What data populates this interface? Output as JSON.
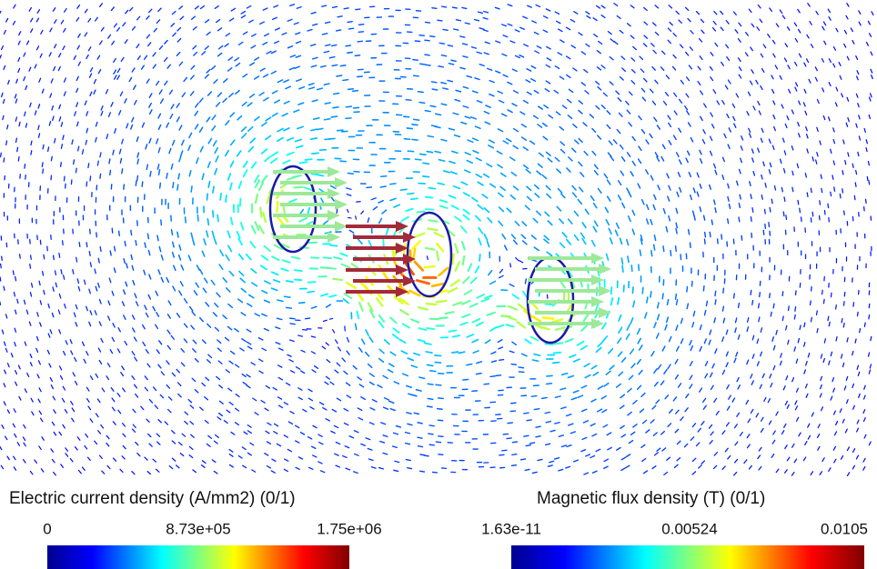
{
  "legends": [
    {
      "title": "Electric current density (A/mm2) (0/1)",
      "ticks": [
        "0",
        "8.73e+05",
        "1.75e+06"
      ]
    },
    {
      "title": "Magnetic flux density (T) (0/1)",
      "ticks": [
        "1.63e-11",
        "0.00524",
        "0.0105"
      ]
    }
  ]
}
